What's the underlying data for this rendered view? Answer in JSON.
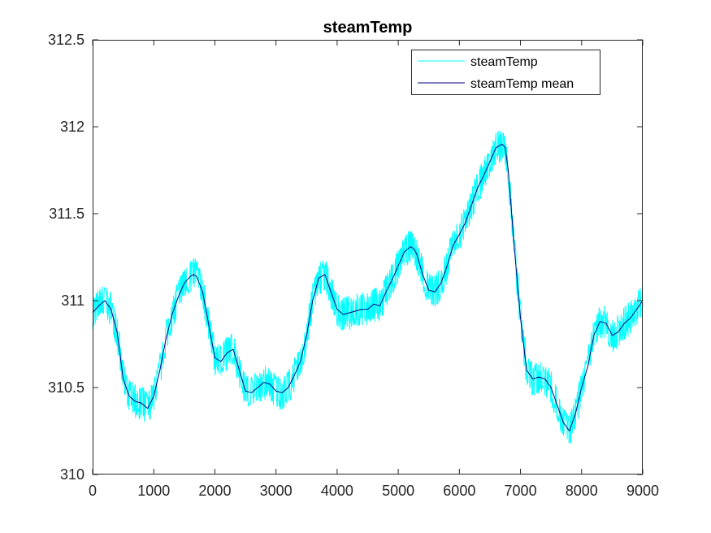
{
  "chart_data": {
    "type": "line",
    "title": "steamTemp",
    "xlabel": "",
    "ylabel": "",
    "xlim": [
      0,
      9000
    ],
    "ylim": [
      310,
      312.5
    ],
    "xticks": [
      0,
      1000,
      2000,
      3000,
      4000,
      5000,
      6000,
      7000,
      8000,
      9000
    ],
    "xtick_labels": [
      "0",
      "1000",
      "2000",
      "3000",
      "4000",
      "5000",
      "6000",
      "7000",
      "8000",
      "9000"
    ],
    "yticks": [
      310,
      310.5,
      311,
      311.5,
      312,
      312.5
    ],
    "ytick_labels": [
      "310",
      "310.5",
      "311",
      "311.5",
      "312",
      "312.5"
    ],
    "grid": false,
    "legend": "top-right",
    "series": [
      {
        "name": "steamTemp",
        "color": "#00ffff",
        "noise_amplitude": 0.1,
        "x": [
          0,
          100,
          200,
          300,
          400,
          500,
          600,
          700,
          800,
          900,
          1000,
          1100,
          1200,
          1300,
          1400,
          1500,
          1600,
          1650,
          1700,
          1800,
          1900,
          2000,
          2100,
          2200,
          2300,
          2400,
          2500,
          2600,
          2700,
          2800,
          2900,
          3000,
          3100,
          3200,
          3300,
          3400,
          3500,
          3600,
          3700,
          3800,
          3900,
          4000,
          4100,
          4200,
          4300,
          4400,
          4500,
          4600,
          4700,
          4800,
          4900,
          5000,
          5100,
          5200,
          5250,
          5300,
          5400,
          5500,
          5600,
          5700,
          5800,
          5900,
          6000,
          6100,
          6200,
          6300,
          6400,
          6500,
          6600,
          6700,
          6750,
          6800,
          6900,
          7000,
          7100,
          7200,
          7300,
          7400,
          7500,
          7600,
          7700,
          7800,
          7900,
          8000,
          8100,
          8200,
          8300,
          8400,
          8500,
          8600,
          8700,
          8800,
          8900,
          9000
        ],
        "y": [
          310.93,
          310.97,
          311.0,
          310.95,
          310.82,
          310.55,
          310.45,
          310.42,
          310.41,
          310.38,
          310.45,
          310.6,
          310.78,
          310.92,
          311.02,
          311.1,
          311.14,
          311.15,
          311.14,
          311.05,
          310.86,
          310.67,
          310.65,
          310.7,
          310.72,
          310.6,
          310.48,
          310.47,
          310.5,
          310.53,
          310.52,
          310.48,
          310.47,
          310.5,
          310.57,
          310.65,
          310.8,
          311.0,
          311.13,
          311.15,
          311.05,
          310.95,
          310.92,
          310.93,
          310.94,
          310.95,
          310.95,
          310.98,
          310.97,
          311.05,
          311.12,
          311.2,
          311.28,
          311.31,
          311.3,
          311.27,
          311.15,
          311.06,
          311.05,
          311.1,
          311.2,
          311.32,
          311.38,
          311.45,
          311.55,
          311.65,
          311.72,
          311.8,
          311.88,
          311.9,
          311.88,
          311.75,
          311.3,
          310.9,
          310.6,
          310.55,
          310.56,
          310.55,
          310.5,
          310.4,
          310.3,
          310.25,
          310.35,
          310.5,
          310.62,
          310.8,
          310.88,
          310.87,
          310.8,
          310.82,
          310.87,
          310.9,
          310.95,
          311.0
        ]
      },
      {
        "name": "steamTemp mean",
        "color": "#000080",
        "x": [
          0,
          100,
          200,
          300,
          400,
          500,
          600,
          700,
          800,
          900,
          1000,
          1100,
          1200,
          1300,
          1400,
          1500,
          1600,
          1650,
          1700,
          1800,
          1900,
          2000,
          2100,
          2200,
          2300,
          2400,
          2500,
          2600,
          2700,
          2800,
          2900,
          3000,
          3100,
          3200,
          3300,
          3400,
          3500,
          3600,
          3700,
          3800,
          3900,
          4000,
          4100,
          4200,
          4300,
          4400,
          4500,
          4600,
          4700,
          4800,
          4900,
          5000,
          5100,
          5200,
          5250,
          5300,
          5400,
          5500,
          5600,
          5700,
          5800,
          5900,
          6000,
          6100,
          6200,
          6300,
          6400,
          6500,
          6600,
          6700,
          6750,
          6800,
          6900,
          7000,
          7100,
          7200,
          7300,
          7400,
          7500,
          7600,
          7700,
          7800,
          7900,
          8000,
          8100,
          8200,
          8300,
          8400,
          8500,
          8600,
          8700,
          8800,
          8900,
          9000
        ],
        "y": [
          310.93,
          310.97,
          311.0,
          310.95,
          310.82,
          310.55,
          310.45,
          310.42,
          310.41,
          310.38,
          310.45,
          310.6,
          310.78,
          310.92,
          311.02,
          311.1,
          311.14,
          311.15,
          311.14,
          311.05,
          310.86,
          310.67,
          310.65,
          310.7,
          310.72,
          310.6,
          310.48,
          310.47,
          310.5,
          310.53,
          310.52,
          310.48,
          310.47,
          310.5,
          310.57,
          310.65,
          310.8,
          311.0,
          311.13,
          311.15,
          311.05,
          310.95,
          310.92,
          310.93,
          310.94,
          310.95,
          310.95,
          310.98,
          310.97,
          311.05,
          311.12,
          311.2,
          311.28,
          311.31,
          311.3,
          311.27,
          311.15,
          311.06,
          311.05,
          311.1,
          311.2,
          311.32,
          311.38,
          311.45,
          311.55,
          311.65,
          311.72,
          311.8,
          311.88,
          311.9,
          311.88,
          311.75,
          311.3,
          310.9,
          310.6,
          310.55,
          310.56,
          310.55,
          310.5,
          310.4,
          310.3,
          310.25,
          310.35,
          310.5,
          310.62,
          310.8,
          310.88,
          310.87,
          310.8,
          310.82,
          310.87,
          310.9,
          310.95,
          311.0
        ]
      }
    ]
  }
}
